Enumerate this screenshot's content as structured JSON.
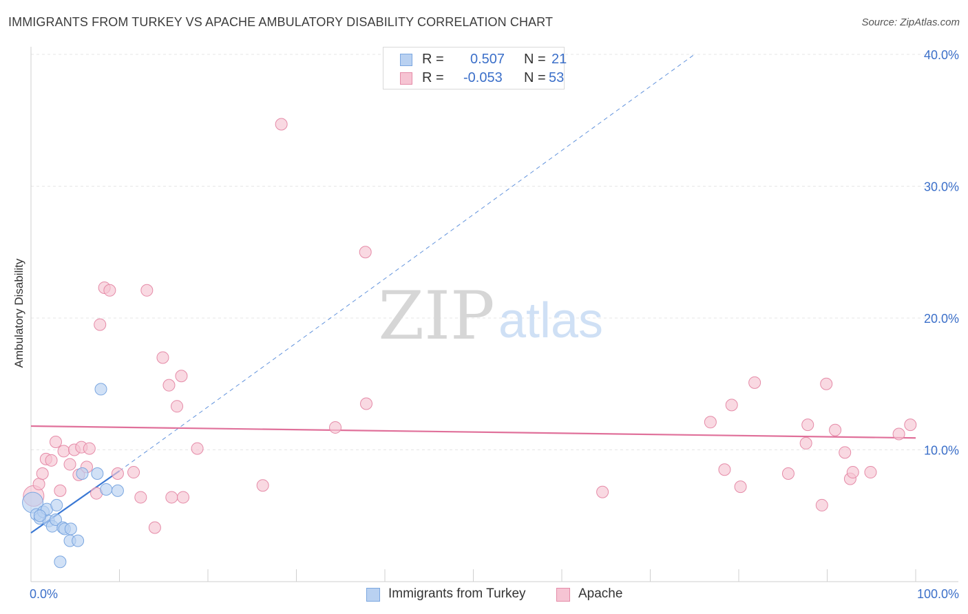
{
  "title": "IMMIGRANTS FROM TURKEY VS APACHE AMBULATORY DISABILITY CORRELATION CHART",
  "source": "Source: ZipAtlas.com",
  "colors": {
    "blue_fill": "#b9d1f1",
    "blue_stroke": "#7aa6e0",
    "blue_line": "#3a78d4",
    "pink_fill": "#f6c4d3",
    "pink_stroke": "#e58aa7",
    "pink_line": "#e0709a",
    "axis_label": "#3b6fc9",
    "grid": "#e6e6e6"
  },
  "legend": {
    "rows": [
      {
        "r_label": "R =",
        "r_value": "0.507",
        "n_label": "N =",
        "n_value": "21"
      },
      {
        "r_label": "R =",
        "r_value": "-0.053",
        "n_label": "N =",
        "n_value": "53"
      }
    ]
  },
  "chart_data": {
    "type": "scatter",
    "ylabel": "Ambulatory Disability",
    "xlim": [
      0,
      100
    ],
    "ylim": [
      0,
      40
    ],
    "x_tick_labels": [
      "0.0%",
      "100.0%"
    ],
    "y_ticks": [
      10,
      20,
      30,
      40
    ],
    "y_tick_labels": [
      "10.0%",
      "20.0%",
      "30.0%",
      "40.0%"
    ],
    "watermark": {
      "zip": "ZIP",
      "atlas": "atlas"
    },
    "series": [
      {
        "name": "Immigrants from Turkey",
        "color": "blue",
        "points": [
          [
            0.2,
            6.0
          ],
          [
            0.6,
            5.1
          ],
          [
            1.0,
            4.8
          ],
          [
            1.4,
            5.3
          ],
          [
            1.8,
            5.5
          ],
          [
            2.0,
            4.6
          ],
          [
            2.4,
            4.2
          ],
          [
            2.8,
            4.7
          ],
          [
            2.9,
            5.8
          ],
          [
            3.6,
            4.1
          ],
          [
            3.8,
            4.0
          ],
          [
            4.5,
            4.0
          ],
          [
            4.4,
            3.1
          ],
          [
            5.3,
            3.1
          ],
          [
            3.3,
            1.5
          ],
          [
            5.8,
            8.2
          ],
          [
            7.5,
            8.2
          ],
          [
            8.5,
            7.0
          ],
          [
            9.8,
            6.9
          ],
          [
            7.9,
            14.6
          ],
          [
            1.0,
            5.0
          ]
        ],
        "trend": {
          "x": [
            0,
            10
          ],
          "y": [
            3.7,
            8.4
          ],
          "style": "solid"
        },
        "trend_extension": {
          "x": [
            10,
            75
          ],
          "y": [
            8.4,
            40.0
          ],
          "style": "dashed"
        }
      },
      {
        "name": "Apache",
        "color": "pink",
        "points": [
          [
            0.3,
            6.5
          ],
          [
            0.9,
            7.4
          ],
          [
            1.3,
            8.2
          ],
          [
            1.7,
            9.3
          ],
          [
            2.3,
            9.2
          ],
          [
            2.8,
            10.6
          ],
          [
            3.3,
            6.9
          ],
          [
            3.7,
            9.9
          ],
          [
            4.4,
            8.9
          ],
          [
            4.9,
            10.0
          ],
          [
            5.4,
            8.1
          ],
          [
            5.7,
            10.2
          ],
          [
            6.3,
            8.7
          ],
          [
            6.6,
            10.1
          ],
          [
            7.4,
            6.7
          ],
          [
            7.8,
            19.5
          ],
          [
            8.3,
            22.3
          ],
          [
            8.9,
            22.1
          ],
          [
            9.8,
            8.2
          ],
          [
            11.6,
            8.3
          ],
          [
            12.4,
            6.4
          ],
          [
            13.1,
            22.1
          ],
          [
            14.0,
            4.1
          ],
          [
            14.9,
            17.0
          ],
          [
            15.6,
            14.9
          ],
          [
            15.9,
            6.4
          ],
          [
            16.5,
            13.3
          ],
          [
            17.0,
            15.6
          ],
          [
            17.2,
            6.4
          ],
          [
            18.8,
            10.1
          ],
          [
            28.3,
            34.7
          ],
          [
            26.2,
            7.3
          ],
          [
            34.4,
            11.7
          ],
          [
            37.8,
            25.0
          ],
          [
            37.9,
            13.5
          ],
          [
            64.6,
            6.8
          ],
          [
            76.8,
            12.1
          ],
          [
            78.4,
            8.5
          ],
          [
            79.2,
            13.4
          ],
          [
            80.2,
            7.2
          ],
          [
            81.8,
            15.1
          ],
          [
            85.6,
            8.2
          ],
          [
            87.6,
            10.5
          ],
          [
            87.8,
            11.9
          ],
          [
            89.4,
            5.8
          ],
          [
            89.9,
            15.0
          ],
          [
            90.9,
            11.5
          ],
          [
            92.0,
            9.8
          ],
          [
            92.6,
            7.8
          ],
          [
            92.9,
            8.3
          ],
          [
            94.9,
            8.3
          ],
          [
            98.1,
            11.2
          ],
          [
            99.4,
            11.9
          ]
        ],
        "trend": {
          "x": [
            0,
            100
          ],
          "y": [
            11.8,
            10.9
          ],
          "style": "solid"
        }
      }
    ]
  }
}
